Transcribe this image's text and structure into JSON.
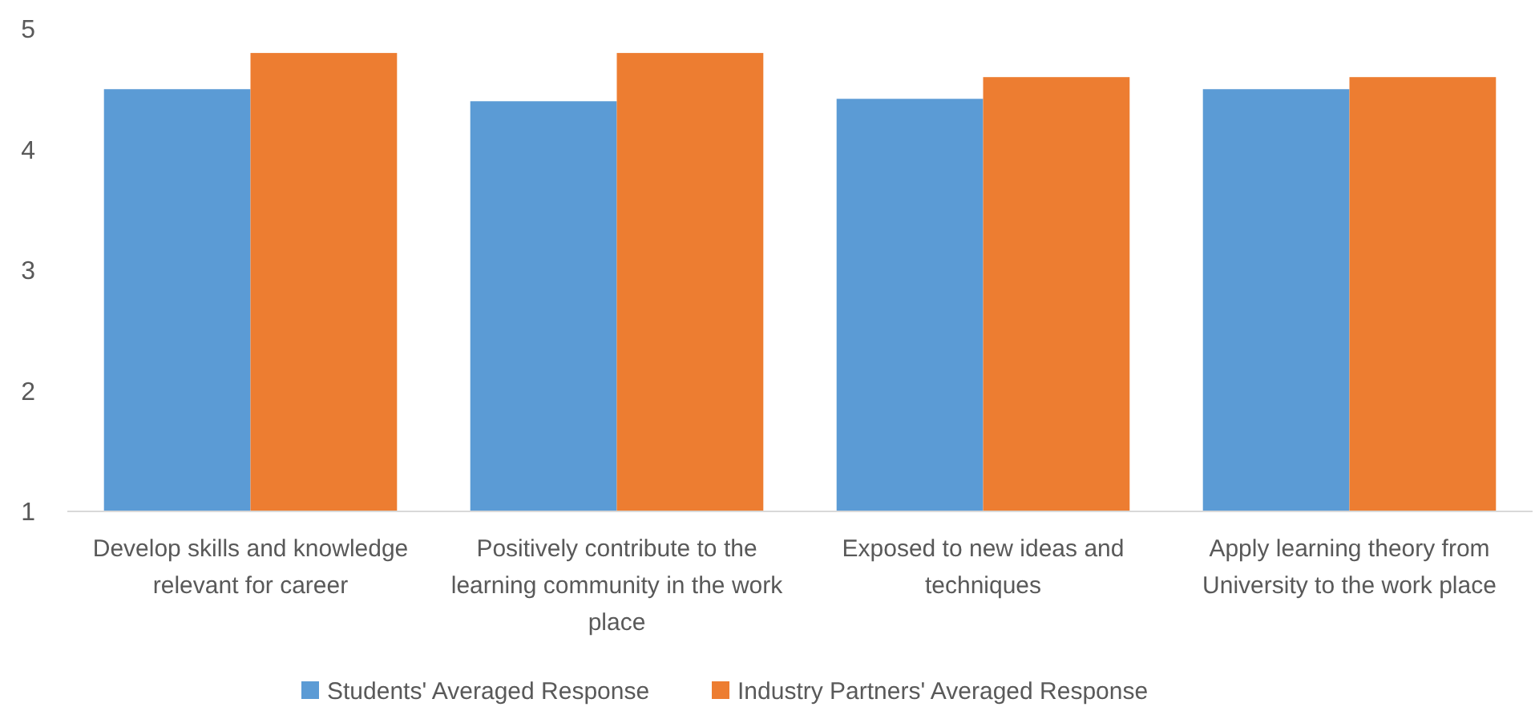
{
  "chart_data": {
    "type": "bar",
    "categories": [
      "Develop skills and knowledge relevant for career",
      "Positively contribute to the learning community in the work place",
      "Exposed to new ideas and techniques",
      "Apply learning theory from University to the work place"
    ],
    "series": [
      {
        "name": "Students' Averaged Response",
        "color": "#5b9bd5",
        "values": [
          4.5,
          4.4,
          4.42,
          4.5
        ]
      },
      {
        "name": "Industry Partners' Averaged Response",
        "color": "#ed7d31",
        "values": [
          4.8,
          4.8,
          4.6,
          4.6
        ]
      }
    ],
    "ylim": [
      1,
      5
    ],
    "yticks": [
      1,
      2,
      3,
      4,
      5
    ],
    "grid": false,
    "legend": "bottom"
  }
}
